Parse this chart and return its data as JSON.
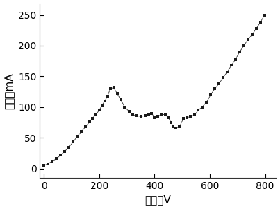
{
  "x_data": [
    0,
    15,
    30,
    45,
    60,
    75,
    90,
    105,
    120,
    135,
    150,
    165,
    175,
    188,
    200,
    210,
    220,
    230,
    240,
    252,
    265,
    278,
    292,
    308,
    320,
    335,
    350,
    365,
    378,
    390,
    400,
    412,
    425,
    438,
    450,
    460,
    468,
    476,
    490,
    505,
    518,
    530,
    545,
    558,
    572,
    588,
    603,
    618,
    633,
    648,
    663,
    678,
    693,
    708,
    723,
    738,
    753,
    768,
    783,
    798
  ],
  "y_data": [
    5,
    8,
    12,
    16,
    22,
    28,
    35,
    43,
    52,
    60,
    68,
    76,
    82,
    88,
    95,
    103,
    110,
    118,
    130,
    132,
    122,
    112,
    100,
    93,
    88,
    86,
    85,
    86,
    88,
    90,
    83,
    85,
    88,
    88,
    83,
    75,
    68,
    66,
    68,
    82,
    83,
    85,
    87,
    95,
    100,
    108,
    120,
    130,
    138,
    148,
    157,
    168,
    178,
    190,
    200,
    210,
    218,
    228,
    238,
    250
  ],
  "marker": "s",
  "marker_size": 3.5,
  "marker_color": "#1a1a1a",
  "line_color": "#333333",
  "line_width": 0.6,
  "xlabel": "电压／V",
  "ylabel": "电流／mA",
  "xlim": [
    -15,
    840
  ],
  "ylim": [
    -15,
    268
  ],
  "xticks": [
    0,
    200,
    400,
    600,
    800
  ],
  "yticks": [
    0,
    50,
    100,
    150,
    200,
    250
  ],
  "xlabel_fontsize": 11,
  "ylabel_fontsize": 11,
  "tick_fontsize": 10,
  "figsize": [
    4.03,
    3.02
  ],
  "dpi": 100,
  "bg_color": "#ffffff"
}
